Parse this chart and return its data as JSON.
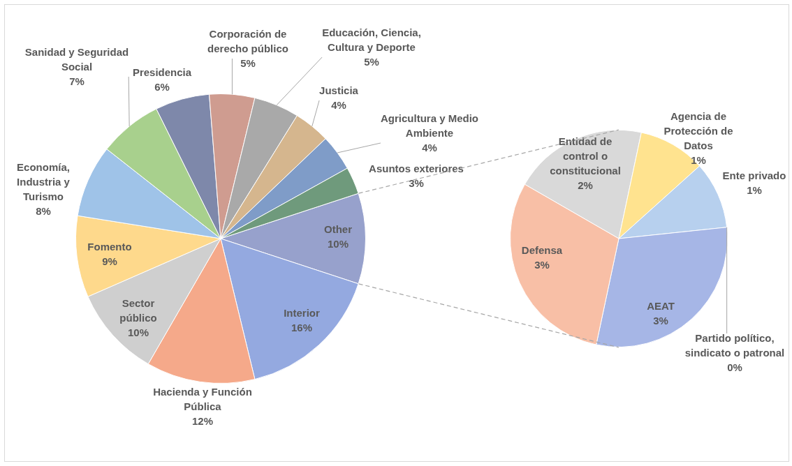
{
  "chart_data": [
    {
      "type": "pie",
      "categories": [
        "Other",
        "Interior",
        "Hacienda y Función Pública",
        "Sector público",
        "Fomento",
        "Economía, Industria y Turismo",
        "Sanidad y Seguridad Social",
        "Presidencia",
        "Corporación de derecho público",
        "Educación, Ciencia, Cultura y Deporte",
        "Justicia",
        "Agricultura y Medio Ambiente",
        "Asuntos exteriores"
      ],
      "values": [
        10,
        16,
        12,
        10,
        9,
        8,
        7,
        6,
        5,
        5,
        4,
        4,
        3
      ],
      "value_labels": [
        "10%",
        "16%",
        "12%",
        "10%",
        "9%",
        "8%",
        "7%",
        "6%",
        "5%",
        "5%",
        "4%",
        "4%",
        "3%"
      ],
      "colors": [
        "#97a1cc",
        "#94a9e0",
        "#f5a98a",
        "#cfcfcf",
        "#fed98c",
        "#9fc3e8",
        "#a8d08d",
        "#7e88aa",
        "#cf9c90",
        "#a9a9a9",
        "#d5b68e",
        "#7f9cc8",
        "#6f9a7c"
      ]
    },
    {
      "type": "pie",
      "categories": [
        "Entidad de control o constitucional",
        "Agencia de Protección de Datos",
        "Ente privado",
        "Partido político, sindicato o patronal",
        "AEAT",
        "Defensa"
      ],
      "values": [
        2,
        1,
        1,
        0,
        3,
        3
      ],
      "value_labels": [
        "2%",
        "1%",
        "1%",
        "0%",
        "3%",
        "3%"
      ],
      "colors": [
        "#d9d9d9",
        "#ffe38f",
        "#b7d0ee",
        "#a9d18e",
        "#a6b6e6",
        "#f8bfa6"
      ]
    }
  ]
}
